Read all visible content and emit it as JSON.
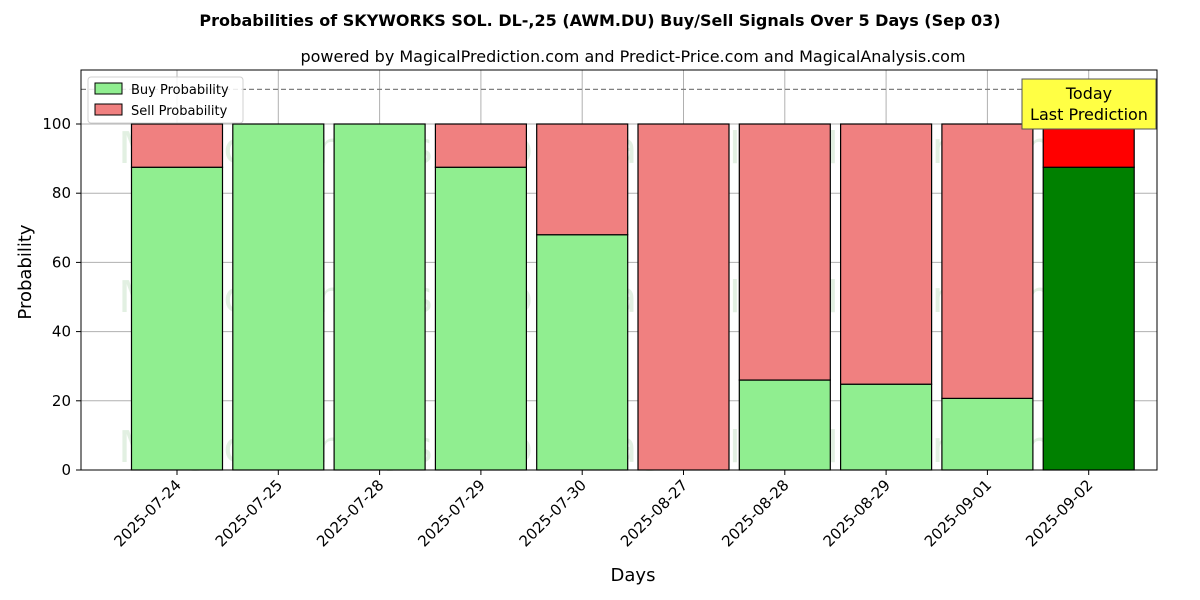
{
  "chart_data": {
    "type": "bar",
    "stacked": true,
    "title": "Probabilities of SKYWORKS SOL.  DL-,25 (AWM.DU) Buy/Sell Signals Over 5 Days (Sep 03)",
    "subtitle": "powered by MagicalPrediction.com and Predict-Price.com and MagicalAnalysis.com",
    "xlabel": "Days",
    "ylabel": "Probability",
    "ylim": [
      0,
      115
    ],
    "yticks": [
      0,
      20,
      40,
      60,
      80,
      100
    ],
    "grid": true,
    "legend_position": "upper left",
    "categories": [
      "2025-07-24",
      "2025-07-25",
      "2025-07-28",
      "2025-07-29",
      "2025-07-30",
      "2025-08-27",
      "2025-08-28",
      "2025-08-29",
      "2025-09-01",
      "2025-09-02"
    ],
    "series": [
      {
        "name": "Buy Probability",
        "color": "#90ee90",
        "values": [
          87.5,
          100,
          100,
          87.5,
          68,
          0,
          26,
          24.8,
          20.7,
          87.5
        ]
      },
      {
        "name": "Sell Probability",
        "color": "#f08080",
        "values": [
          12.5,
          0,
          0,
          12.5,
          32,
          100,
          74,
          75.2,
          79.3,
          12.5
        ]
      }
    ],
    "highlight": {
      "index": 9,
      "buy_color": "#008000",
      "sell_color": "#ff0000"
    },
    "reference_line": {
      "y": 110,
      "style": "dashed",
      "color": "#808080"
    },
    "annotations": [
      {
        "text_line1": "Today",
        "text_line2": "Last Prediction",
        "bg": "#ffff44"
      }
    ],
    "watermarks": [
      "MagicalAnalysis.com",
      "MagicalPrediction.com"
    ]
  }
}
